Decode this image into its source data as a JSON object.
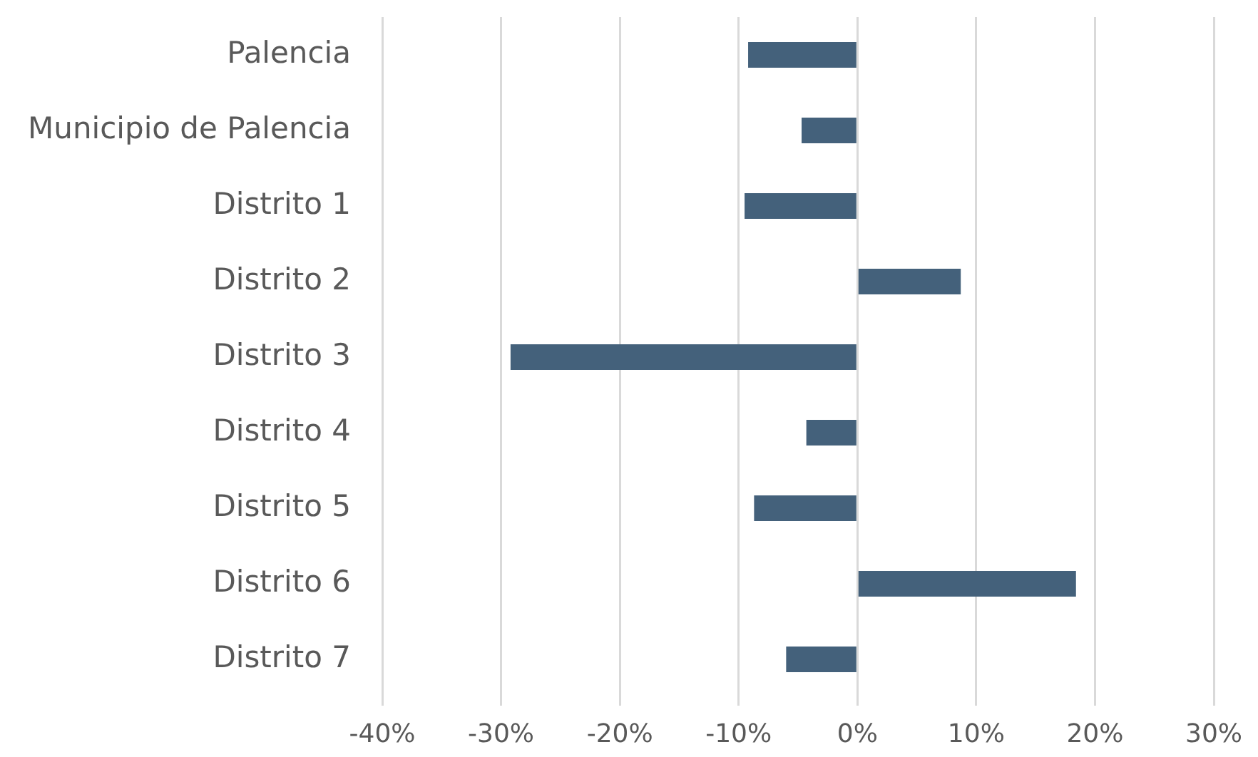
{
  "chart_data": {
    "type": "bar",
    "orientation": "horizontal",
    "categories": [
      "Palencia",
      "Municipio de Palencia",
      "Distrito 1",
      "Distrito 2",
      "Distrito 3",
      "Distrito 4",
      "Distrito 5",
      "Distrito 6",
      "Distrito 7"
    ],
    "values": [
      -9.2,
      -4.7,
      -9.5,
      8.7,
      -29.2,
      -4.3,
      -8.7,
      18.4,
      -6.0
    ],
    "color": "#44617b",
    "xlim": [
      -40,
      30
    ],
    "xticks": [
      {
        "value": -40,
        "label": "-40%"
      },
      {
        "value": -30,
        "label": "-30%"
      },
      {
        "value": -20,
        "label": "-20%"
      },
      {
        "value": -10,
        "label": "-10%"
      },
      {
        "value": 0,
        "label": "0%"
      },
      {
        "value": 10,
        "label": "10%"
      },
      {
        "value": 20,
        "label": "20%"
      },
      {
        "value": 30,
        "label": "30%"
      }
    ],
    "grid": "x"
  }
}
